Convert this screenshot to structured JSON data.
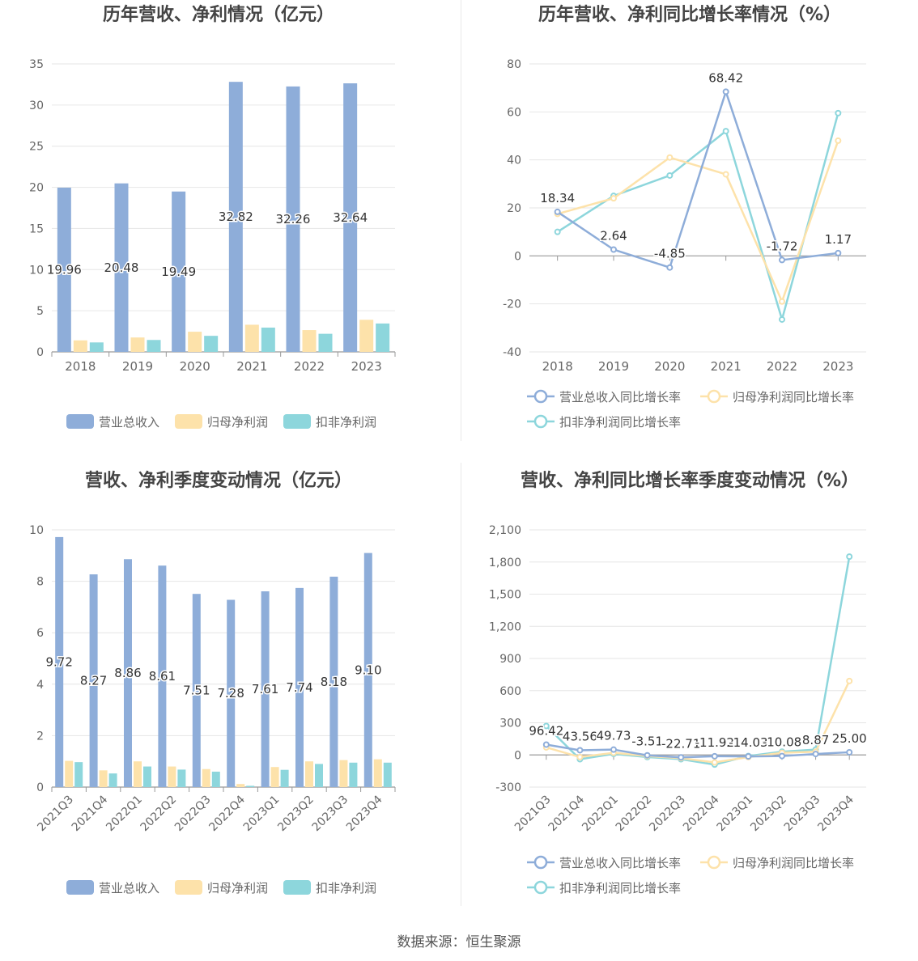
{
  "source": "数据来源：恒生聚源",
  "colors": {
    "revenue": "#8eadd9",
    "net_profit": "#fde2aa",
    "deducted_profit": "#8dd6dc",
    "axis": "#999999",
    "grid": "#e6e6e6",
    "title": "#444444",
    "tick": "#666666",
    "label": "#333333"
  },
  "legend_bar": [
    "营业总收入",
    "归母净利润",
    "扣非净利润"
  ],
  "legend_line": [
    "营业总收入同比增长率",
    "归母净利润同比增长率",
    "扣非净利润同比增长率"
  ],
  "chart_data": [
    {
      "type": "bar",
      "title": "历年营收、净利情况（亿元）",
      "categories": [
        "2018",
        "2019",
        "2020",
        "2021",
        "2022",
        "2023"
      ],
      "ylim": [
        0,
        35
      ],
      "yticks": [
        0,
        5,
        10,
        15,
        20,
        25,
        30,
        35
      ],
      "label_series": 0,
      "labels": [
        "19.96",
        "20.48",
        "19.49",
        "32.82",
        "32.26",
        "32.64"
      ],
      "series": [
        {
          "name": "营业总收入",
          "values": [
            19.96,
            20.48,
            19.49,
            32.82,
            32.26,
            32.64
          ]
        },
        {
          "name": "归母净利润",
          "values": [
            1.4,
            1.75,
            2.45,
            3.3,
            2.65,
            3.9
          ]
        },
        {
          "name": "扣非净利润",
          "values": [
            1.15,
            1.45,
            1.95,
            2.95,
            2.2,
            3.45
          ]
        }
      ],
      "legend": "bottom"
    },
    {
      "type": "line",
      "title": "历年营收、净利同比增长率情况（%）",
      "categories": [
        "2018",
        "2019",
        "2020",
        "2021",
        "2022",
        "2023"
      ],
      "ylim": [
        -40,
        80
      ],
      "yticks": [
        -40,
        -20,
        0,
        20,
        40,
        60,
        80
      ],
      "label_series": 0,
      "labels": [
        "18.34",
        "2.64",
        "-4.85",
        "68.42",
        "-1.72",
        "1.17"
      ],
      "series": [
        {
          "name": "营业总收入同比增长率",
          "values": [
            18.34,
            2.64,
            -4.85,
            68.42,
            -1.72,
            1.17
          ]
        },
        {
          "name": "归母净利润同比增长率",
          "values": [
            17.5,
            24.0,
            41.0,
            34.0,
            -19.0,
            48.0
          ]
        },
        {
          "name": "扣非净利润同比增长率",
          "values": [
            10.0,
            25.0,
            33.5,
            52.0,
            -26.5,
            59.5
          ]
        }
      ],
      "legend": "bottom"
    },
    {
      "type": "bar",
      "title": "营收、净利季度变动情况（亿元）",
      "categories": [
        "2021Q3",
        "2021Q4",
        "2022Q1",
        "2022Q2",
        "2022Q3",
        "2022Q4",
        "2023Q1",
        "2023Q2",
        "2023Q3",
        "2023Q4"
      ],
      "ylim": [
        0,
        10
      ],
      "yticks": [
        0,
        2,
        4,
        6,
        8,
        10
      ],
      "label_series": 0,
      "labels": [
        "9.72",
        "8.27",
        "8.86",
        "8.61",
        "7.51",
        "7.28",
        "7.61",
        "7.74",
        "8.18",
        "9.10"
      ],
      "series": [
        {
          "name": "营业总收入",
          "values": [
            9.72,
            8.27,
            8.86,
            8.61,
            7.51,
            7.28,
            7.61,
            7.74,
            8.18,
            9.1
          ]
        },
        {
          "name": "归母净利润",
          "values": [
            1.02,
            0.65,
            1.0,
            0.8,
            0.7,
            0.12,
            0.78,
            1.0,
            1.05,
            1.08
          ]
        },
        {
          "name": "扣非净利润",
          "values": [
            0.97,
            0.53,
            0.8,
            0.68,
            0.6,
            0.05,
            0.67,
            0.9,
            0.95,
            0.95
          ]
        }
      ],
      "legend": "bottom"
    },
    {
      "type": "line",
      "title": "营收、净利同比增长率季度变动情况（%）",
      "categories": [
        "2021Q3",
        "2021Q4",
        "2022Q1",
        "2022Q2",
        "2022Q3",
        "2022Q4",
        "2023Q1",
        "2023Q2",
        "2023Q3",
        "2023Q4"
      ],
      "ylim": [
        -300,
        2100
      ],
      "yticks": [
        -300,
        0,
        300,
        600,
        900,
        1200,
        1500,
        1800,
        2100
      ],
      "ytick_labels": [
        "-300",
        "0",
        "300",
        "600",
        "900",
        "1,200",
        "1,500",
        "1,800",
        "2,100"
      ],
      "label_series": 0,
      "labels": [
        "96.42",
        "43.56",
        "49.73",
        "-3.51",
        "-22.71",
        "-11.92",
        "-14.03",
        "-10.08",
        "8.87",
        "25.00"
      ],
      "series": [
        {
          "name": "营业总收入同比增长率",
          "values": [
            96.42,
            43.56,
            49.73,
            -3.51,
            -22.71,
            -11.92,
            -14.03,
            -10.08,
            8.87,
            25.0
          ]
        },
        {
          "name": "归母净利润同比增长率",
          "values": [
            70,
            -20,
            20,
            -10,
            -30,
            -70,
            -20,
            20,
            30,
            690
          ]
        },
        {
          "name": "扣非净利润同比增长率",
          "values": [
            270,
            -40,
            10,
            -20,
            -40,
            -90,
            -10,
            30,
            50,
            1850
          ]
        }
      ],
      "legend": "bottom"
    }
  ]
}
